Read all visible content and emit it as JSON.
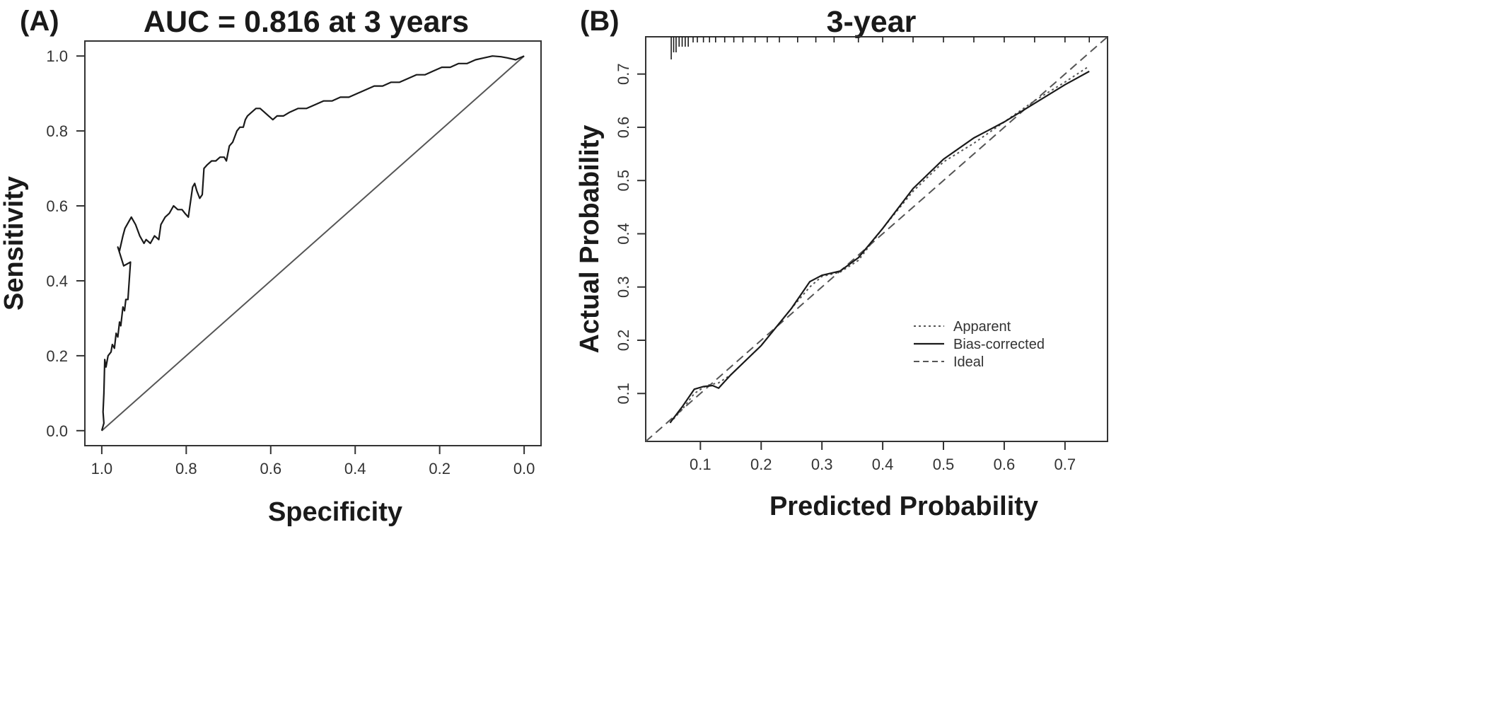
{
  "panels": {
    "a": {
      "letter": "(A)"
    },
    "b": {
      "letter": "(B)"
    }
  },
  "chart_data": [
    {
      "type": "line",
      "title": "AUC = 0.816 at 3 years",
      "xlabel": "Specificity",
      "ylabel": "Sensitivity",
      "xlim": [
        1.04,
        -0.04
      ],
      "ylim": [
        -0.04,
        1.04
      ],
      "x_reversed": true,
      "xticks": [
        "1.0",
        "0.8",
        "0.6",
        "0.4",
        "0.2",
        "0.0"
      ],
      "yticks": [
        "0.0",
        "0.2",
        "0.4",
        "0.6",
        "0.8",
        "1.0"
      ],
      "series": [
        {
          "points": [
            [
              1.0,
              0.0
            ],
            [
              0.995,
              0.02
            ],
            [
              0.997,
              0.05
            ],
            [
              0.995,
              0.1
            ],
            [
              0.993,
              0.19
            ],
            [
              0.99,
              0.17
            ],
            [
              0.985,
              0.2
            ],
            [
              0.978,
              0.21
            ],
            [
              0.975,
              0.23
            ],
            [
              0.97,
              0.22
            ],
            [
              0.966,
              0.26
            ],
            [
              0.962,
              0.25
            ],
            [
              0.958,
              0.29
            ],
            [
              0.955,
              0.28
            ],
            [
              0.95,
              0.33
            ],
            [
              0.946,
              0.32
            ],
            [
              0.943,
              0.35
            ],
            [
              0.938,
              0.35
            ],
            [
              0.932,
              0.45
            ],
            [
              0.948,
              0.44
            ],
            [
              0.962,
              0.49
            ],
            [
              0.958,
              0.48
            ],
            [
              0.95,
              0.52
            ],
            [
              0.945,
              0.54
            ],
            [
              0.935,
              0.56
            ],
            [
              0.93,
              0.57
            ],
            [
              0.92,
              0.55
            ],
            [
              0.91,
              0.52
            ],
            [
              0.9,
              0.5
            ],
            [
              0.895,
              0.51
            ],
            [
              0.885,
              0.5
            ],
            [
              0.875,
              0.52
            ],
            [
              0.865,
              0.51
            ],
            [
              0.86,
              0.55
            ],
            [
              0.85,
              0.57
            ],
            [
              0.84,
              0.58
            ],
            [
              0.83,
              0.6
            ],
            [
              0.82,
              0.59
            ],
            [
              0.81,
              0.59
            ],
            [
              0.803,
              0.58
            ],
            [
              0.795,
              0.57
            ],
            [
              0.785,
              0.65
            ],
            [
              0.78,
              0.66
            ],
            [
              0.775,
              0.64
            ],
            [
              0.768,
              0.62
            ],
            [
              0.762,
              0.63
            ],
            [
              0.758,
              0.7
            ],
            [
              0.75,
              0.71
            ],
            [
              0.74,
              0.72
            ],
            [
              0.73,
              0.72
            ],
            [
              0.72,
              0.73
            ],
            [
              0.71,
              0.73
            ],
            [
              0.705,
              0.72
            ],
            [
              0.698,
              0.76
            ],
            [
              0.69,
              0.77
            ],
            [
              0.68,
              0.8
            ],
            [
              0.673,
              0.81
            ],
            [
              0.665,
              0.81
            ],
            [
              0.66,
              0.83
            ],
            [
              0.655,
              0.84
            ],
            [
              0.645,
              0.85
            ],
            [
              0.635,
              0.86
            ],
            [
              0.625,
              0.86
            ],
            [
              0.615,
              0.85
            ],
            [
              0.605,
              0.84
            ],
            [
              0.595,
              0.83
            ],
            [
              0.585,
              0.84
            ],
            [
              0.57,
              0.84
            ],
            [
              0.555,
              0.85
            ],
            [
              0.535,
              0.86
            ],
            [
              0.515,
              0.86
            ],
            [
              0.495,
              0.87
            ],
            [
              0.475,
              0.88
            ],
            [
              0.455,
              0.88
            ],
            [
              0.435,
              0.89
            ],
            [
              0.415,
              0.89
            ],
            [
              0.395,
              0.9
            ],
            [
              0.375,
              0.91
            ],
            [
              0.355,
              0.92
            ],
            [
              0.335,
              0.92
            ],
            [
              0.315,
              0.93
            ],
            [
              0.295,
              0.93
            ],
            [
              0.275,
              0.94
            ],
            [
              0.255,
              0.95
            ],
            [
              0.235,
              0.95
            ],
            [
              0.215,
              0.96
            ],
            [
              0.195,
              0.97
            ],
            [
              0.175,
              0.97
            ],
            [
              0.155,
              0.98
            ],
            [
              0.135,
              0.98
            ],
            [
              0.115,
              0.99
            ],
            [
              0.095,
              0.995
            ],
            [
              0.075,
              1.0
            ],
            [
              0.055,
              0.998
            ],
            [
              0.04,
              0.995
            ],
            [
              0.02,
              0.99
            ],
            [
              0.01,
              0.995
            ],
            [
              0.0,
              1.0
            ]
          ]
        }
      ],
      "reference_line": [
        [
          1.0,
          0.0
        ],
        [
          0.0,
          1.0
        ]
      ],
      "grid": false
    },
    {
      "type": "line",
      "title": "3-year",
      "xlabel": "Predicted Probability",
      "ylabel": "Actual Probability",
      "xlim": [
        0.01,
        0.77
      ],
      "ylim": [
        0.01,
        0.77
      ],
      "xticks": [
        "0.1",
        "0.2",
        "0.3",
        "0.4",
        "0.5",
        "0.6",
        "0.7"
      ],
      "yticks": [
        "0.1",
        "0.2",
        "0.3",
        "0.4",
        "0.5",
        "0.6",
        "0.7"
      ],
      "legend": {
        "placement": "lower-right",
        "entries": [
          {
            "label": "Apparent",
            "style": "dotted"
          },
          {
            "label": "Bias-corrected",
            "style": "solid"
          },
          {
            "label": "Ideal",
            "style": "dashed"
          }
        ]
      },
      "series": [
        {
          "name": "Apparent",
          "points": [
            [
              0.05,
              0.045
            ],
            [
              0.07,
              0.07
            ],
            [
              0.09,
              0.1
            ],
            [
              0.11,
              0.115
            ],
            [
              0.13,
              0.12
            ],
            [
              0.15,
              0.135
            ],
            [
              0.2,
              0.19
            ],
            [
              0.25,
              0.26
            ],
            [
              0.28,
              0.3
            ],
            [
              0.3,
              0.32
            ],
            [
              0.33,
              0.328
            ],
            [
              0.36,
              0.35
            ],
            [
              0.4,
              0.41
            ],
            [
              0.45,
              0.48
            ],
            [
              0.5,
              0.535
            ],
            [
              0.55,
              0.57
            ],
            [
              0.6,
              0.61
            ],
            [
              0.65,
              0.65
            ],
            [
              0.7,
              0.685
            ],
            [
              0.74,
              0.715
            ]
          ]
        },
        {
          "name": "Bias-corrected",
          "points": [
            [
              0.05,
              0.045
            ],
            [
              0.07,
              0.075
            ],
            [
              0.09,
              0.108
            ],
            [
              0.105,
              0.113
            ],
            [
              0.12,
              0.115
            ],
            [
              0.13,
              0.11
            ],
            [
              0.15,
              0.135
            ],
            [
              0.2,
              0.19
            ],
            [
              0.25,
              0.26
            ],
            [
              0.28,
              0.31
            ],
            [
              0.3,
              0.322
            ],
            [
              0.33,
              0.33
            ],
            [
              0.36,
              0.355
            ],
            [
              0.4,
              0.41
            ],
            [
              0.45,
              0.485
            ],
            [
              0.5,
              0.54
            ],
            [
              0.55,
              0.58
            ],
            [
              0.6,
              0.61
            ],
            [
              0.65,
              0.645
            ],
            [
              0.7,
              0.68
            ],
            [
              0.74,
              0.705
            ]
          ]
        },
        {
          "name": "Ideal",
          "points": [
            [
              0.01,
              0.01
            ],
            [
              0.77,
              0.77
            ]
          ]
        }
      ],
      "rug_top": [
        0.052,
        0.056,
        0.06,
        0.065,
        0.07,
        0.075,
        0.08,
        0.088,
        0.095,
        0.105,
        0.115,
        0.125,
        0.14,
        0.155,
        0.17,
        0.19,
        0.21,
        0.23,
        0.26,
        0.29,
        0.32,
        0.36,
        0.4,
        0.45,
        0.5,
        0.55,
        0.6,
        0.65,
        0.7,
        0.74
      ],
      "grid": false
    }
  ]
}
